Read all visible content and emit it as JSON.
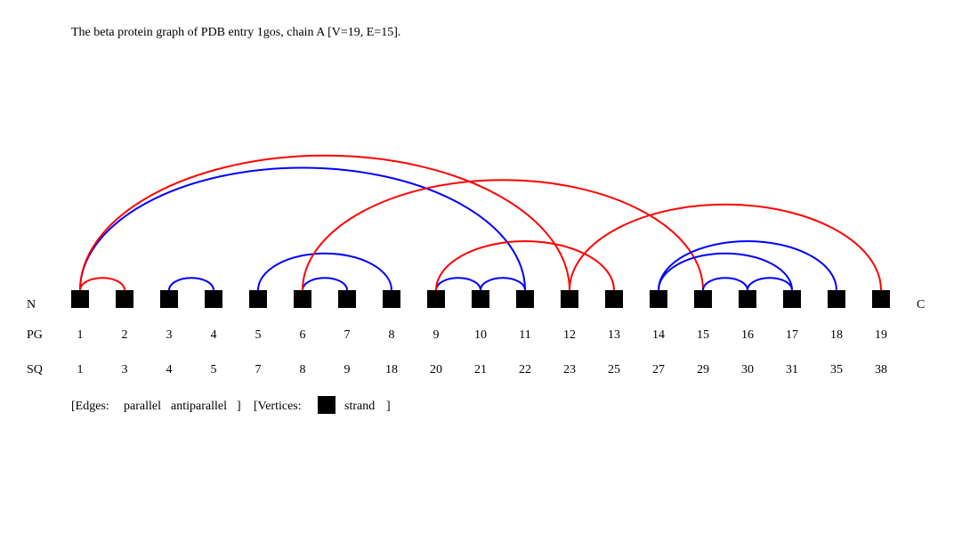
{
  "title": "The beta protein graph of PDB entry 1gos, chain A [V=19, E=15].",
  "end_labels": {
    "n": "N",
    "c": "C"
  },
  "row_labels": {
    "pg": "PG",
    "sq": "SQ"
  },
  "vertices": [
    {
      "pg": "1",
      "sq": "1"
    },
    {
      "pg": "2",
      "sq": "3"
    },
    {
      "pg": "3",
      "sq": "4"
    },
    {
      "pg": "4",
      "sq": "5"
    },
    {
      "pg": "5",
      "sq": "7"
    },
    {
      "pg": "6",
      "sq": "8"
    },
    {
      "pg": "7",
      "sq": "9"
    },
    {
      "pg": "8",
      "sq": "18"
    },
    {
      "pg": "9",
      "sq": "20"
    },
    {
      "pg": "10",
      "sq": "21"
    },
    {
      "pg": "11",
      "sq": "22"
    },
    {
      "pg": "12",
      "sq": "23"
    },
    {
      "pg": "13",
      "sq": "25"
    },
    {
      "pg": "14",
      "sq": "27"
    },
    {
      "pg": "15",
      "sq": "29"
    },
    {
      "pg": "16",
      "sq": "30"
    },
    {
      "pg": "17",
      "sq": "31"
    },
    {
      "pg": "18",
      "sq": "35"
    },
    {
      "pg": "19",
      "sq": "38"
    }
  ],
  "edges": [
    {
      "from": 1,
      "to": 2,
      "type": "parallel"
    },
    {
      "from": 1,
      "to": 11,
      "type": "antiparallel"
    },
    {
      "from": 1,
      "to": 12,
      "type": "parallel"
    },
    {
      "from": 3,
      "to": 4,
      "type": "antiparallel"
    },
    {
      "from": 5,
      "to": 8,
      "type": "antiparallel"
    },
    {
      "from": 6,
      "to": 7,
      "type": "antiparallel"
    },
    {
      "from": 6,
      "to": 15,
      "type": "parallel"
    },
    {
      "from": 9,
      "to": 10,
      "type": "antiparallel"
    },
    {
      "from": 9,
      "to": 13,
      "type": "parallel"
    },
    {
      "from": 10,
      "to": 11,
      "type": "antiparallel"
    },
    {
      "from": 12,
      "to": 19,
      "type": "parallel"
    },
    {
      "from": 14,
      "to": 17,
      "type": "antiparallel"
    },
    {
      "from": 14,
      "to": 18,
      "type": "antiparallel"
    },
    {
      "from": 15,
      "to": 16,
      "type": "antiparallel"
    },
    {
      "from": 16,
      "to": 17,
      "type": "antiparallel"
    }
  ],
  "legend": {
    "edges_label": "[Edges:",
    "parallel_label": "parallel",
    "antiparallel_label": "antiparallel",
    "edges_close": "]",
    "vertices_label": "[Vertices:",
    "strand_label": "strand",
    "vertices_close": "]"
  },
  "colors": {
    "parallel": "#ff0000",
    "antiparallel": "#0000ff",
    "vertex": "#000000"
  }
}
